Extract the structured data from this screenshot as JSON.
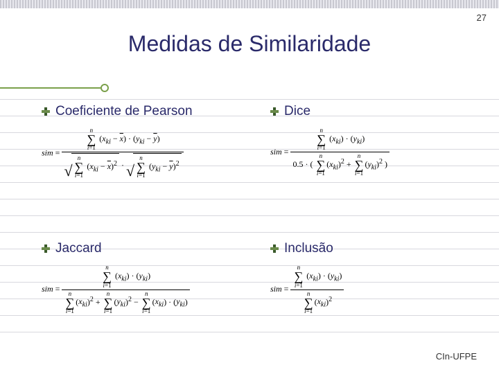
{
  "page_number": "27",
  "title": "Medidas de Similaridade",
  "footer": "CIn-UFPE",
  "colors": {
    "title_color": "#2a2a6a",
    "accent_green": "#7aa04a",
    "rule_color": "#d8d8de",
    "topbar_gradient": [
      "#c8c8d0",
      "#e8e8ee"
    ]
  },
  "typography": {
    "title_fontsize": 32,
    "heading_fontsize": 19,
    "formula_fontsize": 12,
    "page_number_fontsize": 13,
    "footer_fontsize": 13
  },
  "layout": {
    "grid_columns": [
      330,
      280
    ],
    "row_gap": 90
  },
  "items": [
    {
      "label": "Coeficiente de Pearson",
      "formula": {
        "lhs": "sim",
        "numerator": {
          "sum": {
            "from": "i=1",
            "to": "n",
            "body": "(x_{ki} - x̄) · (y_{ki} - ȳ)"
          }
        },
        "denominator": {
          "product": [
            {
              "sqrt": {
                "sum": {
                  "from": "i=1",
                  "to": "n",
                  "body": "(x_{ki} - x̄)^2"
                }
              }
            },
            {
              "sqrt": {
                "sum": {
                  "from": "i=1",
                  "to": "n",
                  "body": "(y_{ki} - ȳ)^2"
                }
              }
            }
          ]
        }
      }
    },
    {
      "label": "Dice",
      "formula": {
        "lhs": "sim",
        "numerator": {
          "sum": {
            "from": "i=1",
            "to": "n",
            "body": "(x_{ki}) · (y_{ki})"
          }
        },
        "denominator": {
          "scale": "0.5",
          "sum_of": [
            {
              "sum": {
                "from": "i=1",
                "to": "n",
                "body": "(x_{ki})^2"
              }
            },
            {
              "sum": {
                "from": "i=1",
                "to": "n",
                "body": "(y_{ki})^2"
              }
            }
          ]
        }
      }
    },
    {
      "label": "Jaccard",
      "formula": {
        "lhs": "sim",
        "numerator": {
          "sum": {
            "from": "i=1",
            "to": "n",
            "body": "(x_{ki}) · (y_{ki})"
          }
        },
        "denominator": {
          "terms": [
            {
              "sum": {
                "from": "i=1",
                "to": "n",
                "body": "(x_{ki})^2"
              }
            },
            "+",
            {
              "sum": {
                "from": "i=1",
                "to": "n",
                "body": "(y_{ki})^2"
              }
            },
            "−",
            {
              "sum": {
                "from": "i=1",
                "to": "n",
                "body": "(x_{ki}) · (y_{ki})"
              }
            }
          ]
        }
      }
    },
    {
      "label": "Inclusão",
      "formula": {
        "lhs": "sim",
        "numerator": {
          "sum": {
            "from": "i=1",
            "to": "n",
            "body": "(x_{ki}) · (y_{ki})"
          }
        },
        "denominator": {
          "sum": {
            "from": "i=1",
            "to": "n",
            "body": "(x_{ki})^2"
          }
        }
      }
    }
  ]
}
